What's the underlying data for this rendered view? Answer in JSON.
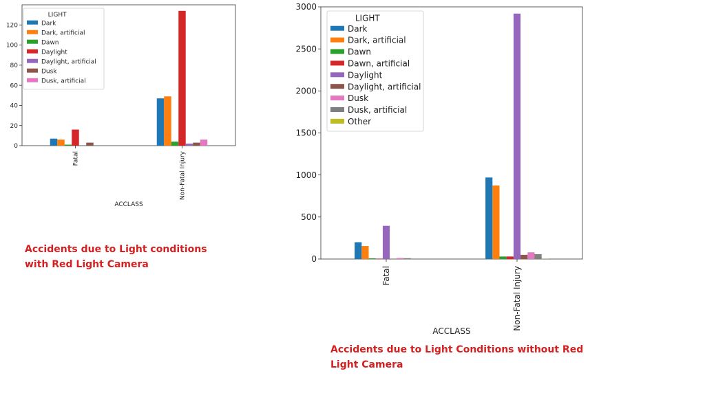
{
  "chart_data": [
    {
      "type": "bar",
      "xlabel": "ACCLASS",
      "ylabel": "",
      "ylim": [
        0,
        140
      ],
      "yticks": [
        0,
        20,
        40,
        60,
        80,
        100,
        120
      ],
      "categories": [
        "Fatal",
        "Non-Fatal Injury"
      ],
      "legend_title": "LIGHT",
      "legend_position": "upper-left",
      "series": [
        {
          "name": "Dark",
          "color": "#1f77b4",
          "values": [
            7,
            47
          ]
        },
        {
          "name": "Dark, artificial",
          "color": "#ff7f0e",
          "values": [
            6,
            49
          ]
        },
        {
          "name": "Dawn",
          "color": "#2ca02c",
          "values": [
            1,
            4
          ]
        },
        {
          "name": "Daylight",
          "color": "#d62728",
          "values": [
            16,
            134
          ]
        },
        {
          "name": "Daylight, artificial",
          "color": "#9467bd",
          "values": [
            0,
            2
          ]
        },
        {
          "name": "Dusk",
          "color": "#8c564b",
          "values": [
            3,
            3
          ]
        },
        {
          "name": "Dusk, artificial",
          "color": "#e377c2",
          "values": [
            0,
            6
          ]
        }
      ]
    },
    {
      "type": "bar",
      "xlabel": "ACCLASS",
      "ylabel": "",
      "ylim": [
        0,
        3000
      ],
      "yticks": [
        0,
        500,
        1000,
        1500,
        2000,
        2500,
        3000
      ],
      "categories": [
        "Fatal",
        "Non-Fatal Injury"
      ],
      "legend_title": "LIGHT",
      "legend_position": "upper-left",
      "series": [
        {
          "name": "Dark",
          "color": "#1f77b4",
          "values": [
            200,
            970
          ]
        },
        {
          "name": "Dark, artificial",
          "color": "#ff7f0e",
          "values": [
            155,
            875
          ]
        },
        {
          "name": "Dawn",
          "color": "#2ca02c",
          "values": [
            8,
            30
          ]
        },
        {
          "name": "Dawn, artificial",
          "color": "#d62728",
          "values": [
            5,
            30
          ]
        },
        {
          "name": "Daylight",
          "color": "#9467bd",
          "values": [
            395,
            2920
          ]
        },
        {
          "name": "Daylight, artificial",
          "color": "#8c564b",
          "values": [
            3,
            50
          ]
        },
        {
          "name": "Dusk",
          "color": "#e377c2",
          "values": [
            12,
            80
          ]
        },
        {
          "name": "Dusk, artificial",
          "color": "#7f7f7f",
          "values": [
            10,
            58
          ]
        },
        {
          "name": "Other",
          "color": "#bcbd22",
          "values": [
            0,
            2
          ]
        }
      ]
    }
  ],
  "captions": {
    "left_line1": "Accidents due to Light conditions",
    "left_line2": "with Red Light Camera",
    "right_line1": "Accidents due to Light Conditions without Red",
    "right_line2": "Light Camera"
  }
}
